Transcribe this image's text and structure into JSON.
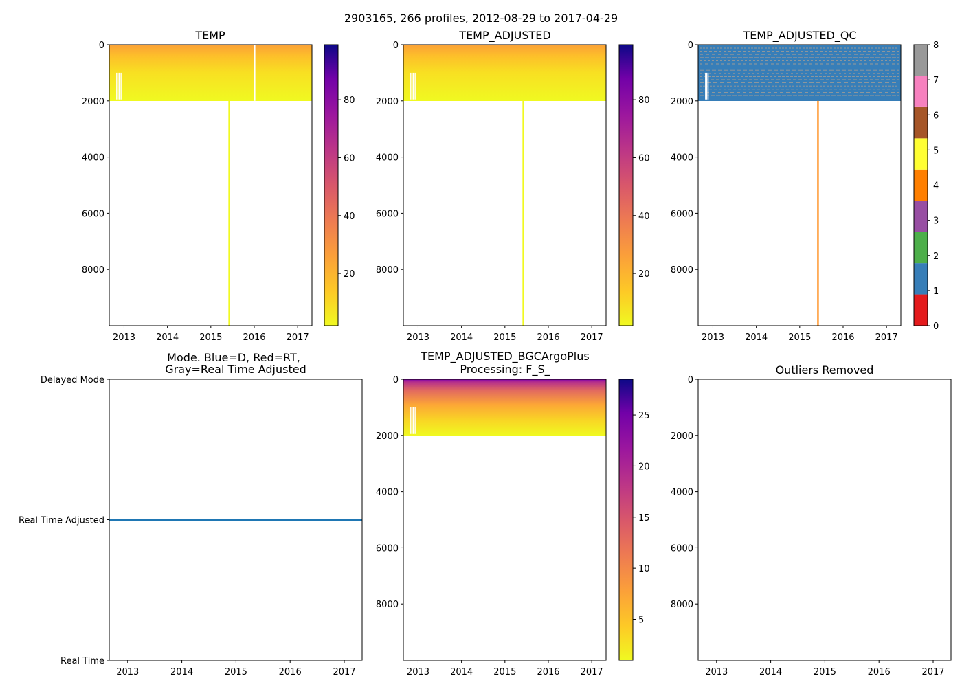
{
  "figure_title": "2903165, 266 profiles, 2012-08-29 to 2017-04-29",
  "chart_data": [
    {
      "id": "temp",
      "type": "heatmap",
      "title": [
        "TEMP"
      ],
      "xlabel": "",
      "ylabel": "",
      "xlim": [
        2012.66,
        2017.33
      ],
      "ylim": [
        10000,
        0
      ],
      "xticks": [
        2013,
        2014,
        2015,
        2016,
        2017
      ],
      "yticks": [
        0,
        2000,
        4000,
        6000,
        8000
      ],
      "colormap": "plasma_r",
      "colorbar": {
        "range": [
          2,
          99
        ],
        "ticks": [
          20,
          40,
          60,
          80
        ]
      },
      "profile_max_depth": 2000,
      "deep_profile": {
        "date": 2015.42,
        "depth": 10000,
        "value": 2
      },
      "gap_dates": [
        2016.0
      ]
    },
    {
      "id": "temp_adjusted",
      "type": "heatmap",
      "title": [
        "TEMP_ADJUSTED"
      ],
      "xlabel": "",
      "ylabel": "",
      "xlim": [
        2012.66,
        2017.33
      ],
      "ylim": [
        10000,
        0
      ],
      "xticks": [
        2013,
        2014,
        2015,
        2016,
        2017
      ],
      "yticks": [
        0,
        2000,
        4000,
        6000,
        8000
      ],
      "colormap": "plasma_r",
      "colorbar": {
        "range": [
          2,
          99
        ],
        "ticks": [
          20,
          40,
          60,
          80
        ]
      },
      "profile_max_depth": 2000,
      "deep_profile": {
        "date": 2015.42,
        "depth": 10000,
        "value": 2
      }
    },
    {
      "id": "temp_adjusted_qc",
      "type": "heatmap",
      "title": [
        "TEMP_ADJUSTED_QC"
      ],
      "xlabel": "",
      "ylabel": "",
      "xlim": [
        2012.66,
        2017.33
      ],
      "ylim": [
        10000,
        0
      ],
      "xticks": [
        2013,
        2014,
        2015,
        2016,
        2017
      ],
      "yticks": [
        0,
        2000,
        4000,
        6000,
        8000
      ],
      "dominant_flag": 1,
      "deep_profile": {
        "date": 2015.42,
        "depth": 10000,
        "flag": 4
      },
      "colorbar": {
        "range": [
          0,
          8
        ],
        "ticks": [
          0,
          1,
          2,
          3,
          4,
          5,
          6,
          7,
          8
        ],
        "classes": [
          "#e41a1c",
          "#377eb8",
          "#4daf4a",
          "#984ea3",
          "#ff7f00",
          "#ffff33",
          "#a65628",
          "#f781bf",
          "#999999"
        ]
      }
    },
    {
      "id": "mode",
      "type": "line",
      "title": [
        "Mode. Blue=D, Red=RT,",
        "Gray=Real Time Adjusted"
      ],
      "xlabel": "",
      "ylabel": "",
      "xlim": [
        2012.66,
        2017.33
      ],
      "xticks": [
        2013,
        2014,
        2015,
        2016,
        2017
      ],
      "ycategories": [
        "Delayed Mode",
        "Real Time Adjusted",
        "Real Time"
      ],
      "series": [
        {
          "name": "mode",
          "color": "#1f77b4",
          "value": "Real Time Adjusted",
          "x": [
            2012.66,
            2017.33
          ]
        }
      ]
    },
    {
      "id": "bgcargoplus",
      "type": "heatmap",
      "title": [
        "TEMP_ADJUSTED_BGCArgoPlus",
        "Processing: F_S_"
      ],
      "xlabel": "",
      "ylabel": "",
      "xlim": [
        2012.66,
        2017.33
      ],
      "ylim": [
        10000,
        0
      ],
      "xticks": [
        2013,
        2014,
        2015,
        2016,
        2017
      ],
      "yticks": [
        0,
        2000,
        4000,
        6000,
        8000
      ],
      "colormap": "plasma_r",
      "colorbar": {
        "range": [
          1,
          28.5
        ],
        "ticks": [
          5,
          10,
          15,
          20,
          25
        ]
      },
      "profile_max_depth": 2000,
      "surface_max": 28
    },
    {
      "id": "outliers",
      "type": "scatter",
      "title": [
        "Outliers Removed"
      ],
      "xlabel": "",
      "ylabel": "",
      "xlim": [
        2012.66,
        2017.33
      ],
      "ylim": [
        10000,
        0
      ],
      "xticks": [
        2013,
        2014,
        2015,
        2016,
        2017
      ],
      "yticks": [
        0,
        2000,
        4000,
        6000,
        8000
      ],
      "points": []
    }
  ]
}
